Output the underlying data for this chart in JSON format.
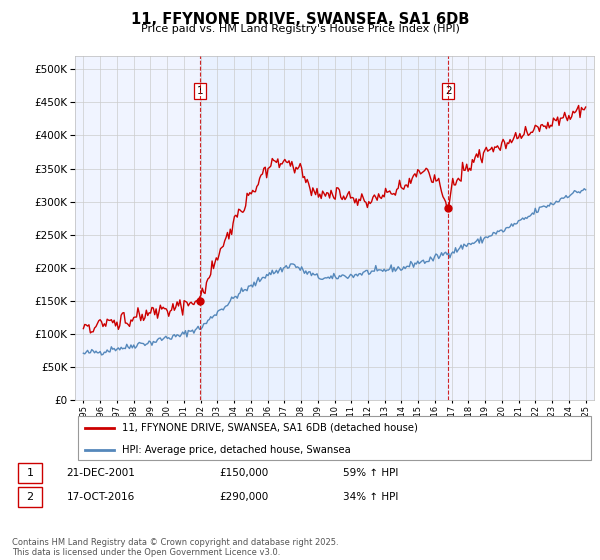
{
  "title": "11, FFYNONE DRIVE, SWANSEA, SA1 6DB",
  "subtitle": "Price paid vs. HM Land Registry's House Price Index (HPI)",
  "legend_line1": "11, FFYNONE DRIVE, SWANSEA, SA1 6DB (detached house)",
  "legend_line2": "HPI: Average price, detached house, Swansea",
  "sale1_date": "21-DEC-2001",
  "sale1_price": "£150,000",
  "sale1_hpi": "59% ↑ HPI",
  "sale2_date": "17-OCT-2016",
  "sale2_price": "£290,000",
  "sale2_hpi": "34% ↑ HPI",
  "footer": "Contains HM Land Registry data © Crown copyright and database right 2025.\nThis data is licensed under the Open Government Licence v3.0.",
  "line1_color": "#cc0000",
  "line2_color": "#5588bb",
  "vline_color": "#cc0000",
  "shade_color": "#ddeeff",
  "ylim": [
    0,
    520000
  ],
  "yticks": [
    0,
    50000,
    100000,
    150000,
    200000,
    250000,
    300000,
    350000,
    400000,
    450000,
    500000
  ],
  "sale1_x": 2001.97,
  "sale1_y": 150000,
  "sale2_x": 2016.79,
  "sale2_y": 290000,
  "xmin": 1994.5,
  "xmax": 2025.5
}
